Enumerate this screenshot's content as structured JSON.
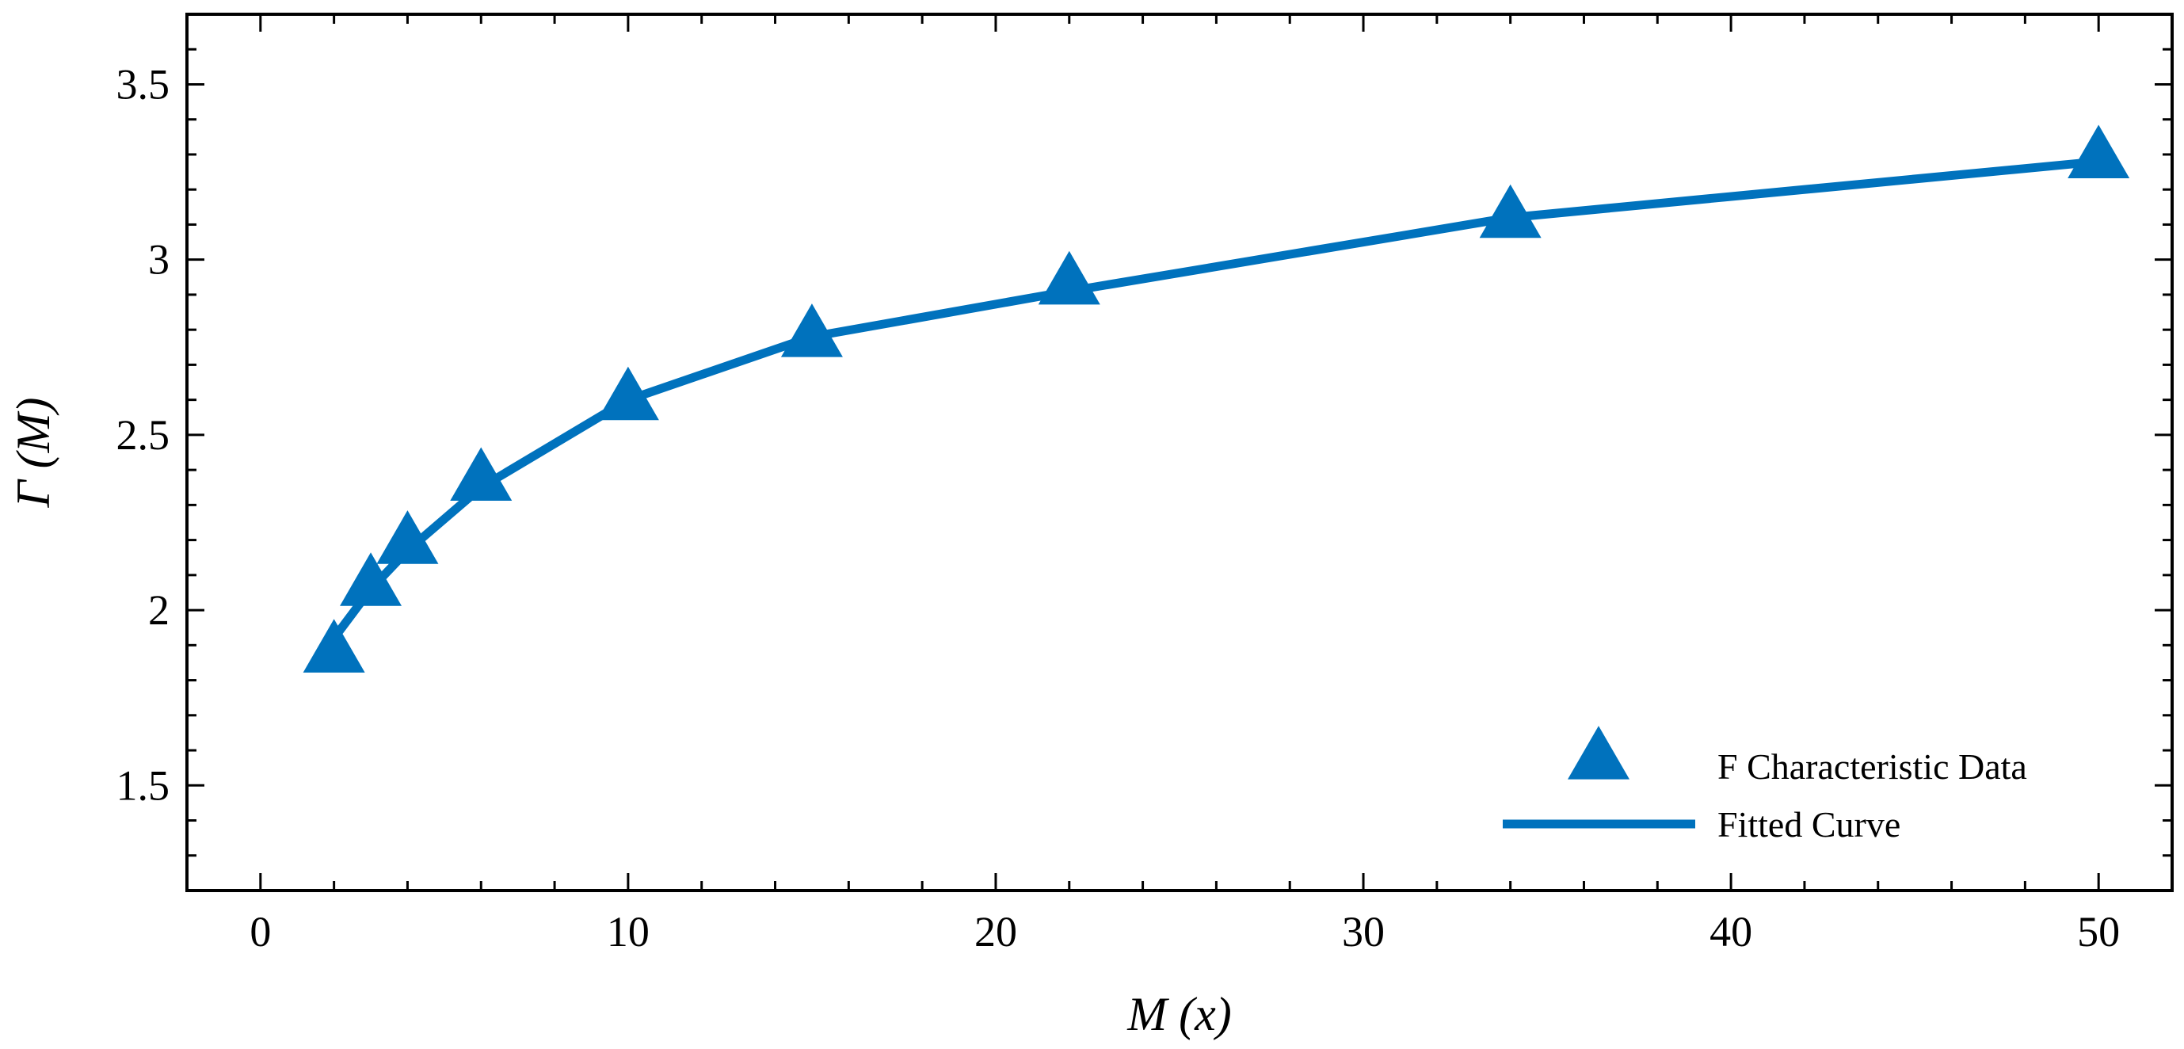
{
  "chart_data": {
    "type": "line",
    "title": "",
    "xlabel": "M (x)",
    "ylabel": "Γ (M)",
    "xlim": [
      -2,
      52
    ],
    "ylim": [
      1.2,
      3.7
    ],
    "xticks": [
      0,
      10,
      20,
      30,
      40,
      50
    ],
    "xtick_labels": [
      "0",
      "10",
      "20",
      "30",
      "40",
      "50"
    ],
    "yticks": [
      1.5,
      2,
      2.5,
      3,
      3.5
    ],
    "ytick_labels": [
      "1.5",
      "2",
      "2.5",
      "3",
      "3.5"
    ],
    "grid": false,
    "legend_position": "bottom-right",
    "color": "#0072bd",
    "series": [
      {
        "name": "F Characteristic Data",
        "kind": "markers",
        "marker": "triangle",
        "x": [
          2,
          3,
          4,
          6,
          10,
          15,
          22,
          34,
          50
        ],
        "y": [
          1.88,
          2.07,
          2.19,
          2.37,
          2.6,
          2.78,
          2.93,
          3.12,
          3.29
        ]
      },
      {
        "name": "Fitted Curve",
        "kind": "line",
        "x": [
          2,
          3,
          4,
          6,
          10,
          15,
          22,
          34,
          50
        ],
        "y": [
          1.92,
          2.06,
          2.17,
          2.35,
          2.6,
          2.78,
          2.91,
          3.12,
          3.28
        ]
      }
    ]
  }
}
